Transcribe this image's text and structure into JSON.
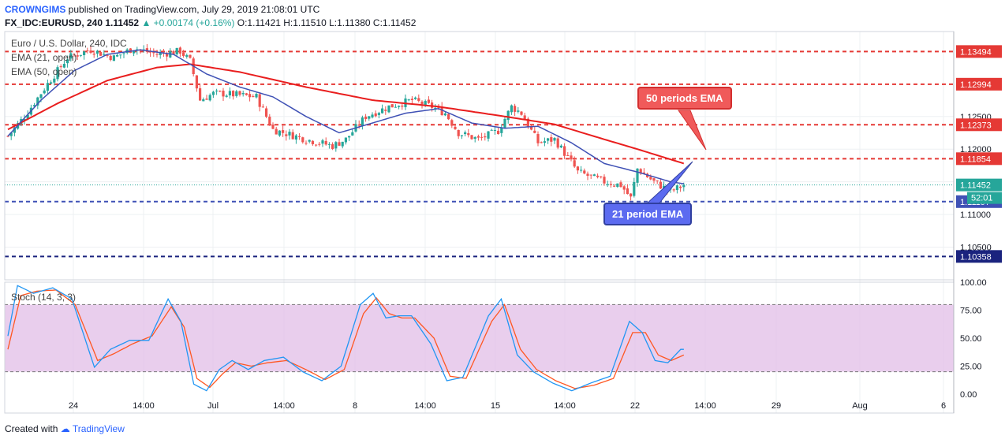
{
  "header": {
    "author": "CROWNGIMS",
    "published": "published on TradingView.com, July 29, 2019 21:08:01 UTC",
    "symbol": "FX_IDC:EURUSD, 240",
    "last": "1.11452",
    "change": "+0.00174 (+0.16%)",
    "ohlc": "O:1.11421 H:1.11510 L:1.11380 C:1.11452"
  },
  "legend": {
    "title": "Euro / U.S. Dollar, 240, IDC",
    "ema21": "EMA (21, open)",
    "ema50": "EMA (50, open)",
    "stoch": "Stoch (14, 3, 3)"
  },
  "annotations": {
    "ema50_label": "50 periods EMA",
    "ema21_label": "21 period EMA"
  },
  "price_badges": {
    "current": "1.11452",
    "countdown": "52:01"
  },
  "footer": {
    "created": "Created with",
    "brand": "TradingView"
  },
  "colors": {
    "bull": "#26a69a",
    "bear": "#ef5350",
    "ema21": "#3f51b5",
    "ema50": "#e91e1e",
    "stoch_k": "#2196f3",
    "stoch_d": "#ff5722",
    "stoch_band": "#e1bee7"
  },
  "chart_data": [
    {
      "type": "candlestick",
      "title": "Euro / U.S. Dollar, 240, IDC",
      "ylim": [
        1.1,
        1.138
      ],
      "y_ticks": [
        "1.12500",
        "1.12000",
        "1.11500",
        "1.11000",
        "1.10500"
      ],
      "x_ticks": [
        "24",
        "14:00",
        "Jul",
        "14:00",
        "8",
        "14:00",
        "15",
        "14:00",
        "22",
        "14:00",
        "29",
        "Aug",
        "6"
      ],
      "horizontal_levels": [
        {
          "value": 1.13494,
          "label": "1.13494",
          "color": "#e53935",
          "style": "dashed"
        },
        {
          "value": 1.12994,
          "label": "1.12994",
          "color": "#e53935",
          "style": "dashed"
        },
        {
          "value": 1.12373,
          "label": "1.12373",
          "color": "#e53935",
          "style": "dashed"
        },
        {
          "value": 1.11854,
          "label": "1.11854",
          "color": "#e53935",
          "style": "dashed"
        },
        {
          "value": 1.11197,
          "label": "1.11197",
          "color": "#3f51b5",
          "style": "dashed"
        },
        {
          "value": 1.10358,
          "label": "1.10358",
          "color": "#1a237e",
          "style": "dashed"
        }
      ],
      "close_anchors": [
        [
          0,
          1.122
        ],
        [
          5,
          1.125
        ],
        [
          12,
          1.13
        ],
        [
          18,
          1.134
        ],
        [
          25,
          1.1352
        ],
        [
          32,
          1.134
        ],
        [
          38,
          1.1355
        ],
        [
          45,
          1.1345
        ],
        [
          52,
          1.135
        ],
        [
          55,
          1.1335
        ],
        [
          58,
          1.1275
        ],
        [
          62,
          1.1285
        ],
        [
          65,
          1.1285
        ],
        [
          75,
          1.128
        ],
        [
          80,
          1.123
        ],
        [
          90,
          1.1215
        ],
        [
          98,
          1.1205
        ],
        [
          102,
          1.1215
        ],
        [
          108,
          1.125
        ],
        [
          115,
          1.1265
        ],
        [
          122,
          1.1275
        ],
        [
          128,
          1.1265
        ],
        [
          132,
          1.1255
        ],
        [
          136,
          1.1225
        ],
        [
          142,
          1.1215
        ],
        [
          148,
          1.1228
        ],
        [
          152,
          1.1265
        ],
        [
          155,
          1.1255
        ],
        [
          160,
          1.121
        ],
        [
          165,
          1.1215
        ],
        [
          170,
          1.118
        ],
        [
          172,
          1.1165
        ],
        [
          180,
          1.115
        ],
        [
          185,
          1.1145
        ],
        [
          188,
          1.1125
        ],
        [
          190,
          1.117
        ],
        [
          195,
          1.115
        ],
        [
          200,
          1.1135
        ],
        [
          204,
          1.1145
        ]
      ],
      "ema21_anchors": [
        [
          0,
          1.122
        ],
        [
          10,
          1.1275
        ],
        [
          20,
          1.132
        ],
        [
          30,
          1.1345
        ],
        [
          40,
          1.1352
        ],
        [
          50,
          1.1345
        ],
        [
          60,
          1.1315
        ],
        [
          70,
          1.1295
        ],
        [
          80,
          1.128
        ],
        [
          90,
          1.125
        ],
        [
          100,
          1.1225
        ],
        [
          110,
          1.124
        ],
        [
          120,
          1.1255
        ],
        [
          130,
          1.1262
        ],
        [
          140,
          1.124
        ],
        [
          150,
          1.1232
        ],
        [
          160,
          1.1235
        ],
        [
          170,
          1.121
        ],
        [
          180,
          1.1178
        ],
        [
          190,
          1.1165
        ],
        [
          200,
          1.115
        ],
        [
          204,
          1.1147
        ]
      ],
      "ema50_anchors": [
        [
          0,
          1.123
        ],
        [
          15,
          1.127
        ],
        [
          30,
          1.1305
        ],
        [
          45,
          1.1325
        ],
        [
          55,
          1.133
        ],
        [
          70,
          1.1318
        ],
        [
          90,
          1.1295
        ],
        [
          110,
          1.1275
        ],
        [
          130,
          1.1265
        ],
        [
          150,
          1.125
        ],
        [
          165,
          1.1238
        ],
        [
          180,
          1.1215
        ],
        [
          190,
          1.12
        ],
        [
          204,
          1.1178
        ]
      ]
    },
    {
      "type": "line",
      "title": "Stoch (14, 3, 3)",
      "ylim": [
        0,
        100
      ],
      "y_ticks": [
        "100.00",
        "75.00",
        "50.00",
        "25.00",
        "0.00"
      ],
      "band": [
        20,
        80
      ],
      "k_anchors": [
        [
          0,
          52
        ],
        [
          3,
          97
        ],
        [
          8,
          90
        ],
        [
          14,
          95
        ],
        [
          20,
          85
        ],
        [
          27,
          24
        ],
        [
          32,
          40
        ],
        [
          38,
          48
        ],
        [
          44,
          48
        ],
        [
          50,
          85
        ],
        [
          54,
          65
        ],
        [
          58,
          9
        ],
        [
          62,
          3
        ],
        [
          66,
          22
        ],
        [
          70,
          30
        ],
        [
          75,
          22
        ],
        [
          80,
          30
        ],
        [
          86,
          33
        ],
        [
          92,
          20
        ],
        [
          98,
          12
        ],
        [
          104,
          25
        ],
        [
          110,
          80
        ],
        [
          114,
          90
        ],
        [
          118,
          68
        ],
        [
          122,
          70
        ],
        [
          126,
          70
        ],
        [
          132,
          45
        ],
        [
          137,
          12
        ],
        [
          142,
          15
        ],
        [
          150,
          70
        ],
        [
          154,
          85
        ],
        [
          159,
          35
        ],
        [
          164,
          20
        ],
        [
          170,
          10
        ],
        [
          176,
          3
        ],
        [
          182,
          10
        ],
        [
          188,
          16
        ],
        [
          194,
          65
        ],
        [
          198,
          55
        ],
        [
          202,
          30
        ],
        [
          206,
          28
        ],
        [
          210,
          40
        ]
      ],
      "d_anchors": [
        [
          0,
          40
        ],
        [
          4,
          88
        ],
        [
          9,
          92
        ],
        [
          15,
          93
        ],
        [
          21,
          80
        ],
        [
          28,
          30
        ],
        [
          33,
          36
        ],
        [
          39,
          45
        ],
        [
          45,
          52
        ],
        [
          51,
          78
        ],
        [
          55,
          60
        ],
        [
          59,
          14
        ],
        [
          63,
          6
        ],
        [
          67,
          18
        ],
        [
          71,
          28
        ],
        [
          76,
          25
        ],
        [
          81,
          28
        ],
        [
          87,
          30
        ],
        [
          93,
          22
        ],
        [
          99,
          13
        ],
        [
          105,
          22
        ],
        [
          111,
          72
        ],
        [
          115,
          86
        ],
        [
          119,
          72
        ],
        [
          123,
          68
        ],
        [
          127,
          68
        ],
        [
          133,
          50
        ],
        [
          138,
          16
        ],
        [
          143,
          14
        ],
        [
          151,
          65
        ],
        [
          155,
          80
        ],
        [
          160,
          40
        ],
        [
          165,
          22
        ],
        [
          171,
          12
        ],
        [
          177,
          5
        ],
        [
          183,
          8
        ],
        [
          189,
          14
        ],
        [
          195,
          55
        ],
        [
          199,
          55
        ],
        [
          203,
          35
        ],
        [
          207,
          30
        ],
        [
          211,
          35
        ]
      ]
    }
  ]
}
